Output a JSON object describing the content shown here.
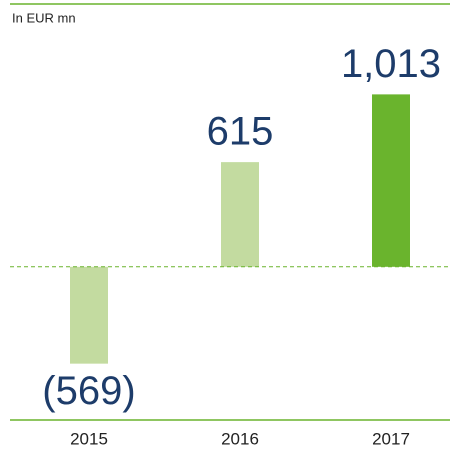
{
  "chart_data": {
    "type": "bar",
    "subtitle": "In EUR mn",
    "categories": [
      "2015",
      "2016",
      "2017"
    ],
    "values": [
      -569,
      615,
      1013
    ],
    "value_labels": [
      "(569)",
      "615",
      "1,013"
    ],
    "colors": [
      "#c3dba0",
      "#c3dba0",
      "#6ab42d"
    ],
    "ylim": [
      -900,
      1450
    ]
  }
}
